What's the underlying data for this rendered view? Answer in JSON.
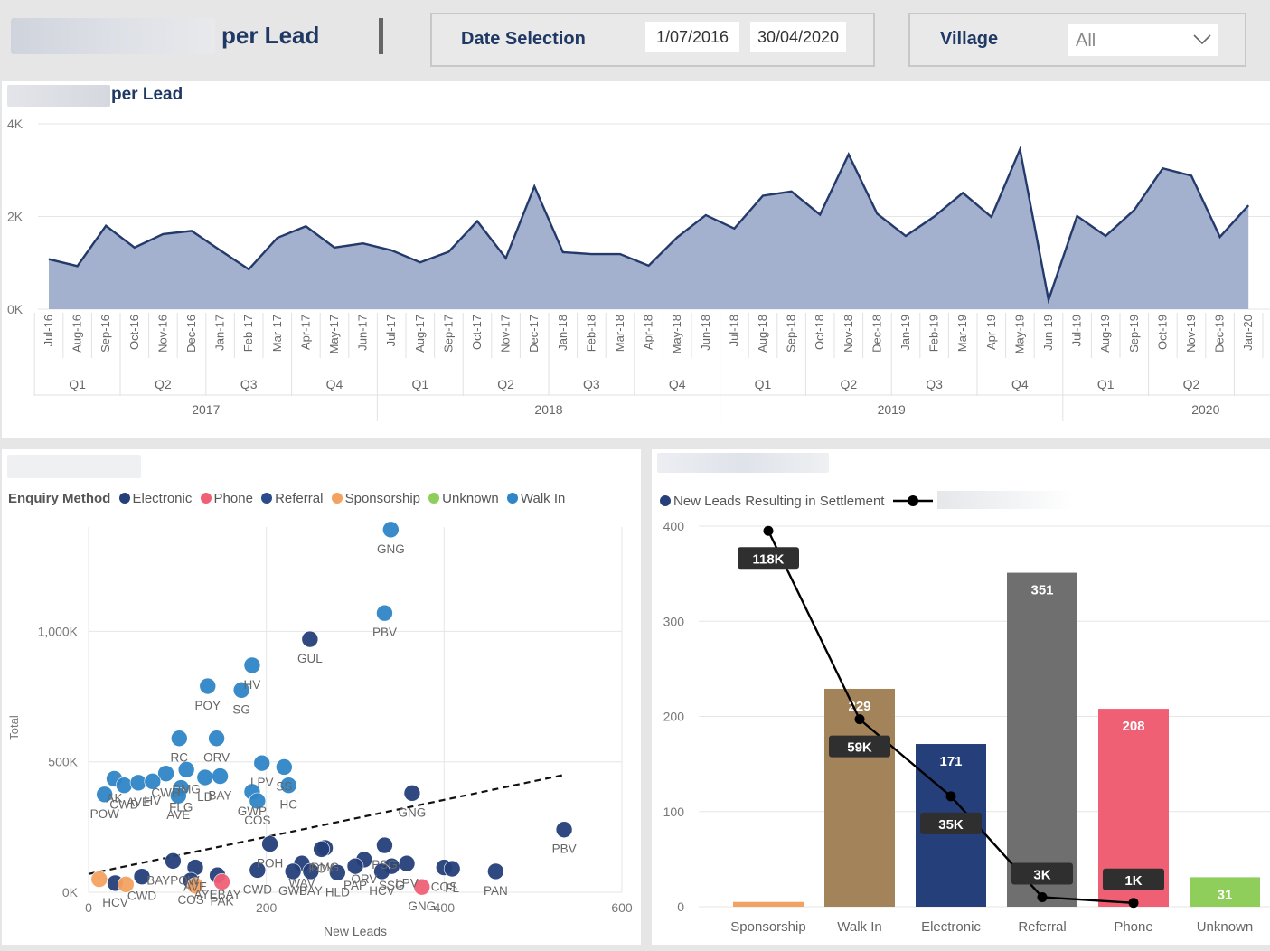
{
  "header": {
    "title": "per Lead",
    "date_selection_label": "Date Selection",
    "date_from": "1/07/2016",
    "date_to": "30/04/2020",
    "village_label": "Village",
    "village_value": "All"
  },
  "colors": {
    "title_navy": "#1f3864",
    "area_fill": "#a3b1cf",
    "area_line": "#243a6b",
    "electronic": "#253f7a",
    "phone": "#ef6074",
    "referral": "#2b4b8c",
    "sponsorship": "#f4a261",
    "unknown": "#8fce5a",
    "walk_in": "#2f85c6",
    "bar_walk_in": "#a3845a",
    "bar_referral": "#6f6f6f"
  },
  "chart_data": [
    {
      "type": "area",
      "title": "per Lead",
      "ylim": [
        0,
        4000
      ],
      "y_ticks": [
        "4K",
        "2K",
        "0K"
      ],
      "y_tick_values": [
        4000,
        2000,
        0
      ],
      "categories": [
        "Jul-16",
        "Aug-16",
        "Sep-16",
        "Oct-16",
        "Nov-16",
        "Dec-16",
        "Jan-17",
        "Feb-17",
        "Mar-17",
        "Apr-17",
        "May-17",
        "Jun-17",
        "Jul-17",
        "Aug-17",
        "Sep-17",
        "Oct-17",
        "Nov-17",
        "Dec-17",
        "Jan-18",
        "Feb-18",
        "Mar-18",
        "Apr-18",
        "May-18",
        "Jun-18",
        "Jul-18",
        "Aug-18",
        "Sep-18",
        "Oct-18",
        "Nov-18",
        "Dec-18",
        "Jan-19",
        "Feb-19",
        "Mar-19",
        "Apr-19",
        "May-19",
        "Jun-19",
        "Jul-19",
        "Aug-19",
        "Sep-19",
        "Oct-19",
        "Nov-19",
        "Dec-19",
        "Jan-20"
      ],
      "values": [
        1080,
        930,
        1800,
        1330,
        1620,
        1690,
        1270,
        860,
        1540,
        1790,
        1330,
        1420,
        1270,
        1010,
        1240,
        1900,
        1100,
        2650,
        1230,
        1190,
        1190,
        940,
        1550,
        2030,
        1740,
        2450,
        2540,
        2040,
        3340,
        2060,
        1580,
        2000,
        2510,
        1990,
        3450,
        200,
        2010,
        1580,
        2140,
        3040,
        2880,
        1560,
        2240
      ],
      "quarters": [
        "Q1",
        "Q2",
        "Q3",
        "Q4",
        "Q1",
        "Q2",
        "Q3",
        "Q4",
        "Q1",
        "Q2",
        "Q3",
        "Q4",
        "Q1",
        "Q2"
      ],
      "years": [
        "2017",
        "2018",
        "2019",
        "2020"
      ],
      "grid": true
    },
    {
      "type": "scatter",
      "xlabel": "New Leads",
      "ylabel": "Total",
      "xlim": [
        0,
        600
      ],
      "ylim": [
        0,
        1400000
      ],
      "x_ticks": [
        "0",
        "200",
        "400",
        "600"
      ],
      "x_tick_values": [
        0,
        200,
        400,
        600
      ],
      "y_ticks": [
        "0K",
        "500K",
        "1,000K"
      ],
      "y_tick_values": [
        0,
        500000,
        1000000
      ],
      "legend_title": "Enquiry Method",
      "legend": [
        "Electronic",
        "Phone",
        "Referral",
        "Sponsorship",
        "Unknown",
        "Walk In"
      ],
      "legend_placement": "top",
      "trendline": [
        [
          0,
          70000
        ],
        [
          535,
          450000
        ]
      ],
      "points": [
        {
          "x": 340,
          "y": 1390000,
          "series": "Walk In",
          "label": "GNG"
        },
        {
          "x": 333,
          "y": 1070000,
          "series": "Walk In",
          "label": "PBV"
        },
        {
          "x": 249,
          "y": 970000,
          "series": "Electronic",
          "label": "GUL"
        },
        {
          "x": 184,
          "y": 870000,
          "series": "Walk In",
          "label": "HV"
        },
        {
          "x": 134,
          "y": 790000,
          "series": "Walk In",
          "label": "POY"
        },
        {
          "x": 172,
          "y": 775000,
          "series": "Walk In",
          "label": "SG"
        },
        {
          "x": 102,
          "y": 590000,
          "series": "Walk In",
          "label": "RC"
        },
        {
          "x": 144,
          "y": 590000,
          "series": "Walk In",
          "label": "ORV"
        },
        {
          "x": 195,
          "y": 495000,
          "series": "Walk In",
          "label": "LPV"
        },
        {
          "x": 110,
          "y": 470000,
          "series": "Walk In",
          "label": "DMG"
        },
        {
          "x": 220,
          "y": 480000,
          "series": "Walk In",
          "label": "SS"
        },
        {
          "x": 87,
          "y": 455000,
          "series": "Walk In",
          "label": "CWD"
        },
        {
          "x": 29,
          "y": 435000,
          "series": "Walk In",
          "label": "AK"
        },
        {
          "x": 40,
          "y": 410000,
          "series": "Walk In",
          "label": "CWD"
        },
        {
          "x": 56,
          "y": 420000,
          "series": "Walk In",
          "label": "AVE"
        },
        {
          "x": 72,
          "y": 425000,
          "series": "Walk In",
          "label": "HV"
        },
        {
          "x": 131,
          "y": 440000,
          "series": "Walk In",
          "label": "LD"
        },
        {
          "x": 148,
          "y": 445000,
          "series": "Walk In",
          "label": "BAY"
        },
        {
          "x": 104,
          "y": 400000,
          "series": "Walk In",
          "label": "FLG"
        },
        {
          "x": 184,
          "y": 385000,
          "series": "Walk In",
          "label": "GWP"
        },
        {
          "x": 18,
          "y": 375000,
          "series": "Walk In",
          "label": "POW"
        },
        {
          "x": 225,
          "y": 410000,
          "series": "Walk In",
          "label": "HC"
        },
        {
          "x": 190,
          "y": 350000,
          "series": "Walk In",
          "label": "COS"
        },
        {
          "x": 101,
          "y": 370000,
          "series": "Walk In",
          "label": "AVE"
        },
        {
          "x": 364,
          "y": 380000,
          "series": "Electronic",
          "label": "GNG"
        },
        {
          "x": 535,
          "y": 240000,
          "series": "Electronic",
          "label": "PBV"
        },
        {
          "x": 204,
          "y": 185000,
          "series": "Electronic",
          "label": "POH"
        },
        {
          "x": 266,
          "y": 170000,
          "series": "Electronic",
          "label": "DMG"
        },
        {
          "x": 262,
          "y": 165000,
          "series": "Electronic",
          "label": "POY"
        },
        {
          "x": 333,
          "y": 180000,
          "series": "Electronic",
          "label": "PSG"
        },
        {
          "x": 310,
          "y": 125000,
          "series": "Electronic",
          "label": "ORV"
        },
        {
          "x": 358,
          "y": 110000,
          "series": "Electronic",
          "label": "LPV"
        },
        {
          "x": 120,
          "y": 95000,
          "series": "Electronic",
          "label": "AVE"
        },
        {
          "x": 95,
          "y": 120000,
          "series": "Electronic",
          "label": "BAYPOW"
        },
        {
          "x": 240,
          "y": 110000,
          "series": "Electronic",
          "label": "WAV"
        },
        {
          "x": 300,
          "y": 100000,
          "series": "Electronic",
          "label": "PAP"
        },
        {
          "x": 341,
          "y": 100000,
          "series": "Electronic",
          "label": "SSG"
        },
        {
          "x": 400,
          "y": 95000,
          "series": "Electronic",
          "label": "COS"
        },
        {
          "x": 458,
          "y": 80000,
          "series": "Electronic",
          "label": "PAN"
        },
        {
          "x": 250,
          "y": 80000,
          "series": "Electronic",
          "label": "BAY"
        },
        {
          "x": 280,
          "y": 75000,
          "series": "Electronic",
          "label": "HLD"
        },
        {
          "x": 230,
          "y": 80000,
          "series": "Electronic",
          "label": "GWP"
        },
        {
          "x": 330,
          "y": 80000,
          "series": "Electronic",
          "label": "HCV"
        },
        {
          "x": 409,
          "y": 90000,
          "series": "Electronic",
          "label": "FL"
        },
        {
          "x": 190,
          "y": 85000,
          "series": "Electronic",
          "label": "CWD"
        },
        {
          "x": 145,
          "y": 65000,
          "series": "Electronic",
          "label": "AYEBAY"
        },
        {
          "x": 60,
          "y": 60000,
          "series": "Electronic",
          "label": "CWD"
        },
        {
          "x": 30,
          "y": 35000,
          "series": "Electronic",
          "label": "HCV"
        },
        {
          "x": 115,
          "y": 45000,
          "series": "Electronic",
          "label": "COS"
        },
        {
          "x": 150,
          "y": 40000,
          "series": "Phone",
          "label": "PAK"
        },
        {
          "x": 375,
          "y": 20000,
          "series": "Phone",
          "label": "GNG"
        },
        {
          "x": 120,
          "y": 25000,
          "series": "Sponsorship",
          "label": ""
        },
        {
          "x": 42,
          "y": 30000,
          "series": "Sponsorship",
          "label": ""
        },
        {
          "x": 12,
          "y": 50000,
          "series": "Sponsorship",
          "label": ""
        }
      ]
    },
    {
      "type": "bar",
      "categories": [
        "Sponsorship",
        "Walk In",
        "Electronic",
        "Referral",
        "Phone",
        "Unknown"
      ],
      "series": [
        {
          "name": "New Leads Resulting in Settlement",
          "values": [
            5,
            229,
            171,
            351,
            208,
            31
          ]
        }
      ],
      "bar_labels": [
        "",
        "229",
        "171",
        "351",
        "208",
        "31"
      ],
      "line_series": {
        "values": [
          395,
          197,
          116,
          10,
          4
        ],
        "labels": [
          "118K",
          "59K",
          "35K",
          "3K",
          "1K"
        ]
      },
      "ylim": [
        0,
        400
      ],
      "y_ticks": [
        "400",
        "300",
        "200",
        "100",
        "0"
      ],
      "y_tick_values": [
        400,
        300,
        200,
        100,
        0
      ],
      "legend_placement": "top-left",
      "grid": true
    }
  ]
}
